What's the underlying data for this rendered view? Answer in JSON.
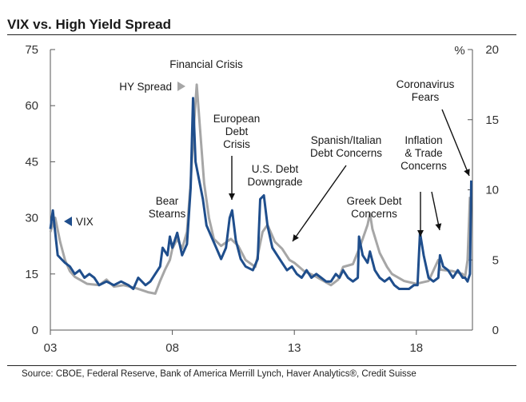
{
  "title": "VIX vs. High Yield Spread",
  "source": "Source: CBOE, Federal Reserve, Bank of America Merrill Lynch, Haver Analytics®, Credit Suisse",
  "colors": {
    "vix": "#1f4e8c",
    "hy_spread": "#a6a6a6",
    "axis": "#555555",
    "annotation": "#111111"
  },
  "chart_data": {
    "type": "line",
    "title": "VIX vs. High Yield Spread",
    "x_range": [
      2003.0,
      2020.3
    ],
    "x_tick_values": [
      2003,
      2008,
      2013,
      2018
    ],
    "x_tick_labels": [
      "03",
      "08",
      "13",
      "18"
    ],
    "y_left": {
      "range": [
        0,
        75
      ],
      "ticks": [
        0,
        15,
        30,
        45,
        60,
        75
      ],
      "label": ""
    },
    "y_right": {
      "range": [
        0,
        20
      ],
      "ticks": [
        0,
        5,
        10,
        15,
        20
      ],
      "label": "%"
    },
    "series": [
      {
        "name": "VIX",
        "axis": "left",
        "label": "VIX",
        "x": [
          2003.0,
          2003.1,
          2003.2,
          2003.3,
          2003.45,
          2003.6,
          2003.8,
          2004.0,
          2004.2,
          2004.4,
          2004.6,
          2004.8,
          2005.0,
          2005.3,
          2005.6,
          2005.9,
          2006.2,
          2006.4,
          2006.6,
          2006.9,
          2007.1,
          2007.3,
          2007.5,
          2007.6,
          2007.8,
          2007.9,
          2008.0,
          2008.2,
          2008.4,
          2008.6,
          2008.75,
          2008.85,
          2008.95,
          2009.1,
          2009.25,
          2009.4,
          2009.6,
          2009.8,
          2010.0,
          2010.2,
          2010.35,
          2010.45,
          2010.6,
          2010.8,
          2011.0,
          2011.3,
          2011.5,
          2011.6,
          2011.75,
          2011.9,
          2012.1,
          2012.3,
          2012.5,
          2012.7,
          2012.9,
          2013.1,
          2013.3,
          2013.5,
          2013.7,
          2013.9,
          2014.1,
          2014.3,
          2014.5,
          2014.7,
          2014.85,
          2015.0,
          2015.2,
          2015.4,
          2015.6,
          2015.65,
          2015.8,
          2016.0,
          2016.1,
          2016.3,
          2016.5,
          2016.7,
          2016.9,
          2017.1,
          2017.3,
          2017.5,
          2017.7,
          2017.9,
          2018.05,
          2018.15,
          2018.3,
          2018.5,
          2018.7,
          2018.9,
          2018.97,
          2019.1,
          2019.3,
          2019.5,
          2019.7,
          2019.9,
          2020.0,
          2020.1,
          2020.2,
          2020.25
        ],
        "values": [
          27,
          32,
          26,
          20,
          19,
          18,
          17,
          15,
          16,
          14,
          15,
          14,
          12,
          13,
          12,
          13,
          12,
          11,
          14,
          12,
          13,
          15,
          17,
          22,
          20,
          25,
          22,
          26,
          20,
          23,
          38,
          62,
          45,
          40,
          35,
          28,
          25,
          22,
          19,
          22,
          30,
          32,
          24,
          19,
          17,
          16,
          19,
          35,
          36,
          28,
          22,
          20,
          18,
          16,
          17,
          15,
          14,
          16,
          14,
          15,
          14,
          13,
          13,
          15,
          14,
          16,
          14,
          13,
          14,
          25,
          20,
          18,
          21,
          16,
          14,
          13,
          14,
          12,
          11,
          11,
          11,
          12,
          12,
          26,
          20,
          14,
          13,
          14,
          20,
          17,
          16,
          14,
          16,
          14,
          14,
          13,
          15,
          40
        ]
      },
      {
        "name": "HY Spread",
        "axis": "right",
        "label": "HY Spread",
        "unit": "%",
        "x": [
          2003.0,
          2003.2,
          2003.4,
          2003.6,
          2003.8,
          2004.0,
          2004.5,
          2005.0,
          2005.3,
          2005.6,
          2006.0,
          2006.5,
          2007.0,
          2007.3,
          2007.5,
          2007.7,
          2007.9,
          2008.0,
          2008.2,
          2008.4,
          2008.6,
          2008.75,
          2008.9,
          2009.0,
          2009.15,
          2009.3,
          2009.5,
          2009.7,
          2010.0,
          2010.4,
          2010.7,
          2011.0,
          2011.4,
          2011.7,
          2011.9,
          2012.2,
          2012.5,
          2012.8,
          2013.0,
          2013.4,
          2013.8,
          2014.2,
          2014.5,
          2014.8,
          2015.0,
          2015.4,
          2015.7,
          2016.0,
          2016.1,
          2016.2,
          2016.5,
          2016.8,
          2017.0,
          2017.5,
          2018.0,
          2018.5,
          2018.9,
          2019.0,
          2019.5,
          2019.9,
          2020.0,
          2020.1,
          2020.2
        ],
        "values": [
          7.0,
          8.0,
          6.3,
          5.0,
          4.2,
          3.8,
          3.3,
          3.2,
          3.6,
          3.1,
          3.2,
          3.0,
          2.7,
          2.6,
          3.5,
          4.3,
          5.0,
          5.8,
          6.5,
          5.8,
          7.0,
          10.5,
          15.0,
          17.5,
          14.0,
          10.5,
          8.0,
          6.5,
          6.0,
          6.5,
          6.0,
          5.0,
          4.5,
          7.0,
          7.5,
          6.3,
          5.8,
          5.0,
          4.8,
          4.2,
          3.9,
          3.5,
          3.2,
          3.6,
          4.5,
          4.7,
          6.0,
          7.5,
          8.3,
          7.2,
          5.5,
          4.5,
          4.0,
          3.5,
          3.3,
          3.5,
          5.0,
          4.3,
          4.2,
          4.0,
          3.8,
          5.0,
          9.5
        ]
      }
    ],
    "annotations": [
      {
        "id": "financial-crisis",
        "lines": [
          "Financial Crisis"
        ]
      },
      {
        "id": "hy-spread-label",
        "lines": [
          "HY Spread"
        ]
      },
      {
        "id": "vix-label",
        "lines": [
          "VIX"
        ]
      },
      {
        "id": "bear-stearns",
        "lines": [
          "Bear",
          "Stearns"
        ]
      },
      {
        "id": "european-debt",
        "lines": [
          "European",
          "Debt",
          "Crisis"
        ]
      },
      {
        "id": "us-debt",
        "lines": [
          "U.S. Debt",
          "Downgrade"
        ]
      },
      {
        "id": "spanish-italian",
        "lines": [
          "Spanish/Italian",
          "Debt Concerns"
        ]
      },
      {
        "id": "greek-debt",
        "lines": [
          "Greek Debt",
          "Concerns"
        ]
      },
      {
        "id": "inflation-trade",
        "lines": [
          "Inflation",
          "& Trade",
          "Concerns"
        ]
      },
      {
        "id": "coronavirus",
        "lines": [
          "Coronavirus",
          "Fears"
        ]
      }
    ]
  }
}
